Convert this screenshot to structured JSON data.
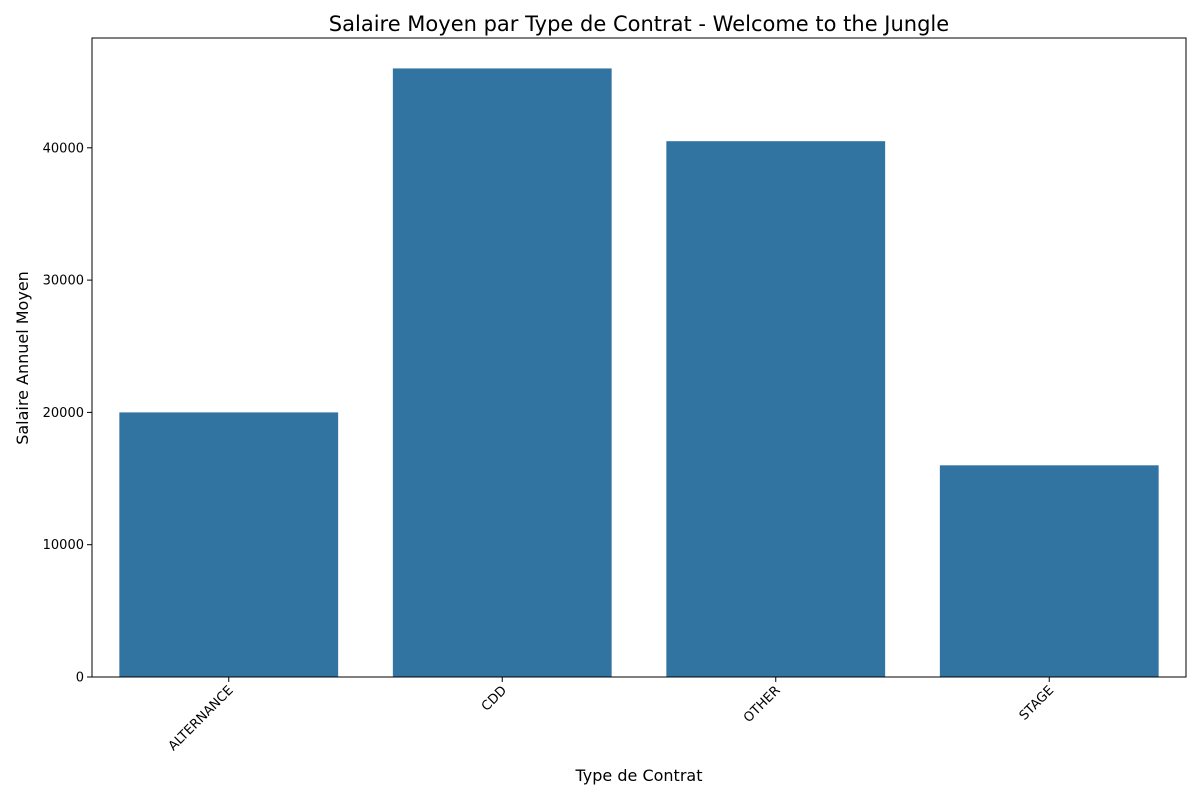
{
  "chart_data": {
    "type": "bar",
    "title": "Salaire Moyen par Type de Contrat - Welcome to the Jungle",
    "xlabel": "Type de Contrat",
    "ylabel": "Salaire Annuel Moyen",
    "categories": [
      "ALTERNANCE",
      "CDD",
      "OTHER",
      "STAGE"
    ],
    "values": [
      20000,
      46000,
      40500,
      16000
    ],
    "ylim": [
      0,
      48300
    ],
    "yticks": [
      0,
      10000,
      20000,
      30000,
      40000
    ],
    "ytick_labels": [
      "0",
      "10000",
      "20000",
      "30000",
      "40000"
    ],
    "bar_color": "#3274a1",
    "grid": false,
    "legend": false
  }
}
